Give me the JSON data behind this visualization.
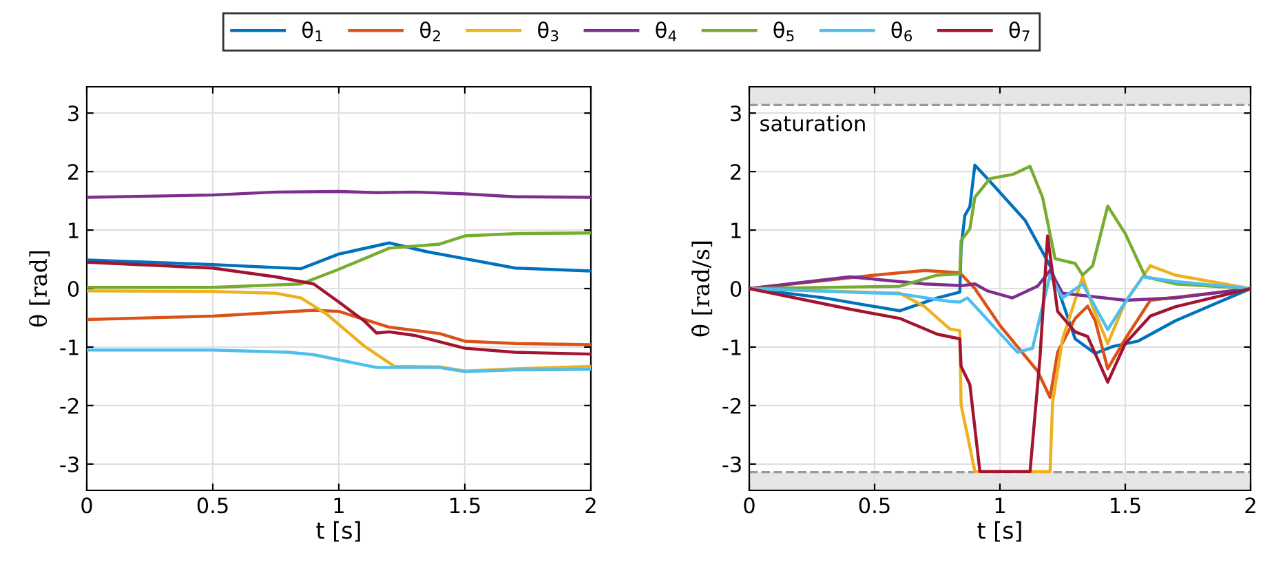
{
  "chart_data": [
    {
      "type": "line",
      "xlabel": "t [s]",
      "ylabel": "θ [rad]",
      "xlim": [
        0,
        2
      ],
      "ylim": [
        -3.45,
        3.45
      ],
      "xticks": [
        0,
        0.5,
        1,
        1.5,
        2
      ],
      "yticks": [
        -3,
        -2,
        -1,
        0,
        1,
        2,
        3
      ],
      "grid": true,
      "legend": "top",
      "series": [
        {
          "name": "θ$_{1}$",
          "color": "#0072bd",
          "x": [
            0,
            0.5,
            0.85,
            1.0,
            1.2,
            1.35,
            1.5,
            1.7,
            2
          ],
          "values": [
            0.49,
            0.41,
            0.34,
            0.59,
            0.78,
            0.63,
            0.51,
            0.35,
            0.3
          ]
        },
        {
          "name": "θ$_{2}$",
          "color": "#d95319",
          "x": [
            0,
            0.5,
            0.9,
            1.0,
            1.2,
            1.4,
            1.5,
            1.7,
            2
          ],
          "values": [
            -0.53,
            -0.47,
            -0.37,
            -0.39,
            -0.66,
            -0.77,
            -0.9,
            -0.94,
            -0.96
          ]
        },
        {
          "name": "θ$_{3}$",
          "color": "#edb120",
          "x": [
            0,
            0.5,
            0.75,
            0.85,
            0.95,
            1.1,
            1.22,
            1.4,
            1.5,
            1.7,
            2
          ],
          "values": [
            -0.04,
            -0.05,
            -0.08,
            -0.16,
            -0.43,
            -0.98,
            -1.33,
            -1.34,
            -1.41,
            -1.37,
            -1.33
          ]
        },
        {
          "name": "θ$_{4}$",
          "color": "#7e2f8e",
          "x": [
            0,
            0.5,
            0.75,
            1.0,
            1.15,
            1.3,
            1.5,
            1.7,
            2
          ],
          "values": [
            1.56,
            1.6,
            1.65,
            1.66,
            1.64,
            1.65,
            1.62,
            1.57,
            1.56
          ]
        },
        {
          "name": "θ$_{5}$",
          "color": "#77ac30",
          "x": [
            0,
            0.5,
            0.85,
            1.0,
            1.2,
            1.4,
            1.5,
            1.7,
            2
          ],
          "values": [
            0.02,
            0.02,
            0.08,
            0.33,
            0.69,
            0.76,
            0.9,
            0.94,
            0.95
          ]
        },
        {
          "name": "θ$_{6}$",
          "color": "#4dbeee",
          "x": [
            0,
            0.5,
            0.8,
            0.9,
            1.15,
            1.4,
            1.5,
            1.7,
            2
          ],
          "values": [
            -1.05,
            -1.05,
            -1.09,
            -1.13,
            -1.35,
            -1.35,
            -1.42,
            -1.39,
            -1.38
          ]
        },
        {
          "name": "θ$_{7}$",
          "color": "#a2142f",
          "x": [
            0,
            0.5,
            0.75,
            0.9,
            1.0,
            1.1,
            1.15,
            1.2,
            1.3,
            1.5,
            1.7,
            2
          ],
          "values": [
            0.45,
            0.35,
            0.2,
            0.08,
            -0.23,
            -0.55,
            -0.76,
            -0.74,
            -0.8,
            -1.02,
            -1.09,
            -1.12
          ]
        }
      ]
    },
    {
      "type": "line",
      "xlabel": "t [s]",
      "ylabel": "θ̇ [rad/s]",
      "xlim": [
        0,
        2
      ],
      "ylim": [
        -3.45,
        3.45
      ],
      "xticks": [
        0,
        0.5,
        1,
        1.5,
        2
      ],
      "yticks": [
        -3,
        -2,
        -1,
        0,
        1,
        2,
        3
      ],
      "grid": true,
      "annotations": [
        "saturation"
      ],
      "ref_lines": [
        {
          "axis": "y",
          "value": 3.14,
          "color": "#999999",
          "line_style": "dashed"
        },
        {
          "axis": "y",
          "value": -3.14,
          "color": "#999999",
          "line_style": "dashed"
        }
      ],
      "bands": [
        {
          "axis": "y",
          "from": 3.14,
          "to": 3.45,
          "color": "#e6e6e6"
        },
        {
          "axis": "y",
          "from": -3.45,
          "to": -3.14,
          "color": "#e6e6e6"
        }
      ],
      "series": [
        {
          "color": "#0072bd",
          "x": [
            0,
            0.3,
            0.6,
            0.75,
            0.84,
            0.845,
            0.86,
            0.88,
            0.9,
            0.95,
            1.1,
            1.2,
            1.3,
            1.38,
            1.45,
            1.55,
            1.7,
            2
          ],
          "values": [
            0,
            -0.16,
            -0.38,
            -0.16,
            -0.06,
            0.7,
            1.25,
            1.4,
            2.11,
            1.88,
            1.17,
            0.39,
            -0.86,
            -1.11,
            -0.99,
            -0.9,
            -0.55,
            0
          ]
        },
        {
          "color": "#d95319",
          "x": [
            0,
            0.5,
            0.7,
            0.84,
            0.9,
            1.0,
            1.15,
            1.2,
            1.23,
            1.3,
            1.35,
            1.38,
            1.43,
            1.5,
            1.6,
            2
          ],
          "values": [
            0,
            0.23,
            0.31,
            0.27,
            0,
            -0.63,
            -1.41,
            -1.86,
            -1.09,
            -0.51,
            -0.3,
            -0.55,
            -1.37,
            -0.86,
            -0.2,
            0
          ]
        },
        {
          "color": "#edb120",
          "x": [
            0,
            0.6,
            0.7,
            0.8,
            0.84,
            0.845,
            0.87,
            0.9,
            1.2,
            1.21,
            1.25,
            1.33,
            1.37,
            1.43,
            1.5,
            1.6,
            1.7,
            2
          ],
          "values": [
            0,
            -0.08,
            -0.31,
            -0.69,
            -0.72,
            -1.99,
            -2.5,
            -3.13,
            -3.13,
            -1.95,
            -0.86,
            0.2,
            -0.31,
            -0.94,
            -0.23,
            0.39,
            0.23,
            0
          ]
        },
        {
          "color": "#7e2f8e",
          "x": [
            0,
            0.4,
            0.7,
            0.85,
            0.9,
            0.95,
            1.05,
            1.15,
            1.2,
            1.25,
            1.5,
            1.7,
            2
          ],
          "values": [
            0,
            0.2,
            0.08,
            0.05,
            0.08,
            -0.04,
            -0.16,
            0.04,
            0.31,
            -0.08,
            -0.2,
            -0.16,
            0
          ]
        },
        {
          "color": "#77ac30",
          "x": [
            0,
            0.6,
            0.75,
            0.84,
            0.845,
            0.88,
            0.9,
            0.96,
            1.05,
            1.12,
            1.17,
            1.22,
            1.3,
            1.33,
            1.37,
            1.43,
            1.5,
            1.58,
            1.7,
            2
          ],
          "values": [
            0,
            0.04,
            0.23,
            0.25,
            0.82,
            1.02,
            1.56,
            1.88,
            1.95,
            2.09,
            1.56,
            0.51,
            0.43,
            0.23,
            0.39,
            1.41,
            0.94,
            0.2,
            0.08,
            0
          ]
        },
        {
          "color": "#4dbeee",
          "x": [
            0,
            0.6,
            0.8,
            0.84,
            0.87,
            1.07,
            1.13,
            1.2,
            1.25,
            1.33,
            1.43,
            1.5,
            1.57,
            1.7,
            2
          ],
          "values": [
            0,
            -0.09,
            -0.22,
            -0.23,
            -0.16,
            -1.09,
            -1.02,
            0.23,
            -0.16,
            0.08,
            -0.7,
            -0.23,
            0.2,
            0.12,
            0
          ]
        },
        {
          "color": "#a2142f",
          "x": [
            0,
            0.4,
            0.6,
            0.75,
            0.84,
            0.845,
            0.88,
            0.92,
            1.12,
            1.16,
            1.19,
            1.23,
            1.3,
            1.35,
            1.43,
            1.5,
            1.6,
            1.7,
            2
          ],
          "values": [
            0,
            -0.35,
            -0.51,
            -0.78,
            -0.86,
            -1.33,
            -1.64,
            -3.13,
            -3.13,
            -1.17,
            0.9,
            -0.39,
            -0.74,
            -0.82,
            -1.6,
            -0.94,
            -0.47,
            -0.31,
            0
          ]
        }
      ]
    }
  ]
}
